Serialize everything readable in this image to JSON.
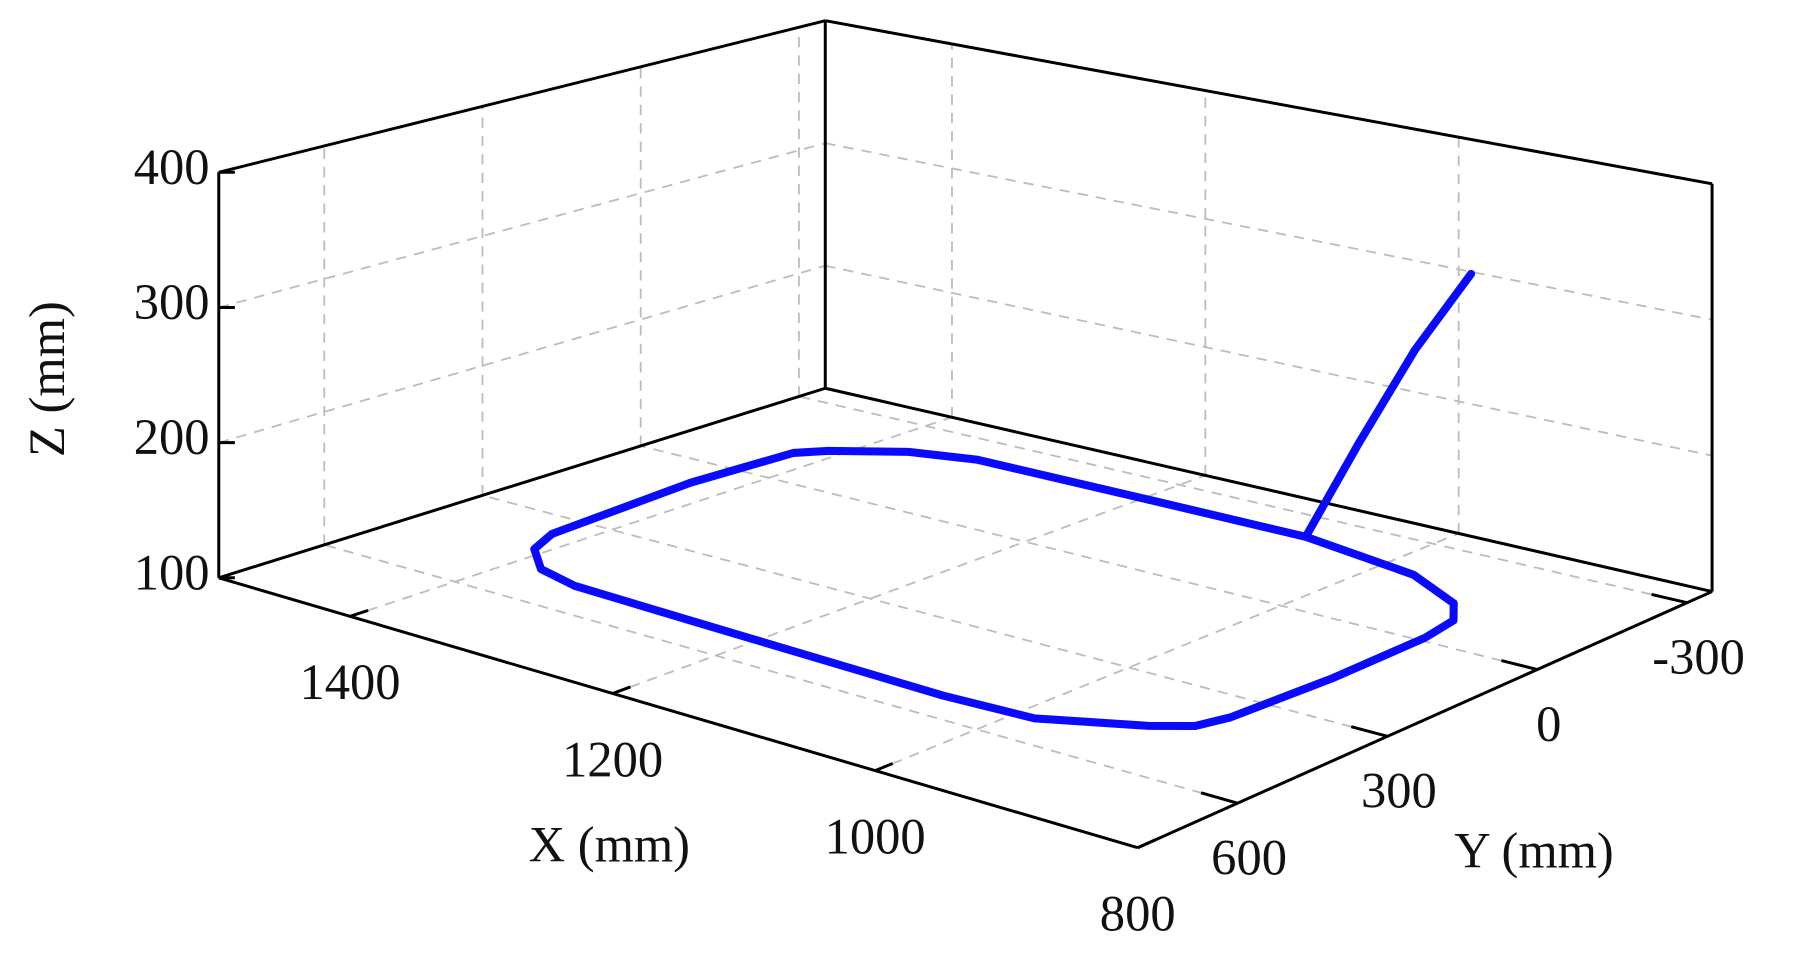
{
  "chart_data": {
    "type": "line3d",
    "x_label": "X (mm)",
    "y_label": "Y (mm)",
    "z_label": "Z (mm)",
    "xlim": [
      800,
      1500
    ],
    "ylim": [
      -350,
      800
    ],
    "zlim": [
      100,
      400
    ],
    "xticks": [
      800,
      1000,
      1200,
      1400
    ],
    "yticks": [
      -300,
      0,
      300,
      600
    ],
    "zticks": [
      100,
      200,
      300,
      400
    ],
    "grid": true,
    "series": [
      {
        "color": "#0a0aff",
        "x": [
          1072,
          972,
          918,
          898,
          892,
          891,
          896,
          903,
          925,
          986,
          1053,
          1253,
          1345,
          1380,
          1408,
          1420,
          1428,
          1423,
          1410,
          1372,
          1330,
          1196,
          1072,
          1030,
          985,
          940
        ],
        "y": [
          -229,
          -191,
          -134,
          -83,
          -11,
          173,
          366,
          417,
          453,
          522,
          530,
          516,
          508,
          485,
          428,
          365,
          81,
          -103,
          -138,
          -199,
          -227,
          -229,
          -229,
          -228,
          -226,
          -224
        ],
        "z": [
          100,
          100,
          100,
          100,
          100,
          100,
          100,
          100,
          100,
          100,
          100,
          100,
          100,
          100,
          100,
          100,
          100,
          100,
          100,
          100,
          100,
          100,
          100,
          180,
          260,
          326
        ]
      }
    ]
  }
}
